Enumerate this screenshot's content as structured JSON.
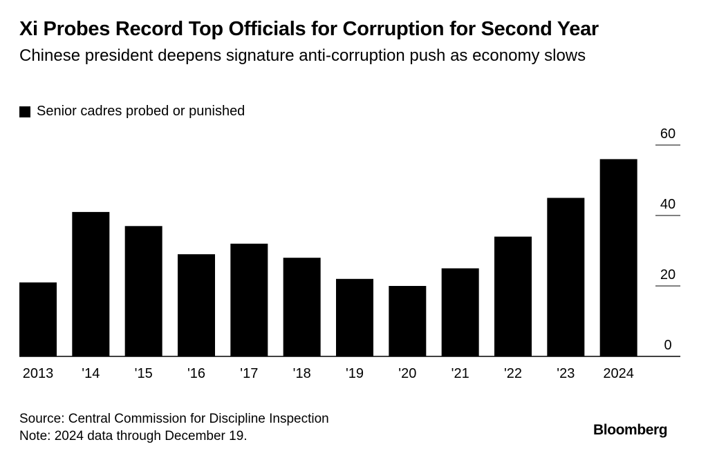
{
  "chart_data": {
    "type": "bar",
    "title": "Xi Probes Record Top Officials for Corruption for Second Year",
    "subtitle": "Chinese president deepens signature anti-corruption push as economy slows",
    "categories": [
      "2013",
      "'14",
      "'15",
      "'16",
      "'17",
      "'18",
      "'19",
      "'20",
      "'21",
      "'22",
      "'23",
      "2024"
    ],
    "series": [
      {
        "name": "Senior cadres probed or punished",
        "values": [
          21,
          41,
          37,
          29,
          32,
          28,
          22,
          20,
          25,
          34,
          45,
          56
        ]
      }
    ],
    "ylim": [
      0,
      60
    ],
    "yticks": [
      0,
      20,
      40,
      60
    ],
    "ylabel": "",
    "xlabel": "",
    "y_axis_side": "right",
    "grid": false,
    "legend_position": "top-left",
    "bar_color": "#000000"
  },
  "footer": {
    "source": "Source: Central Commission for Discipline Inspection",
    "note": "Note: 2024 data through December 19."
  },
  "brand": "Bloomberg"
}
